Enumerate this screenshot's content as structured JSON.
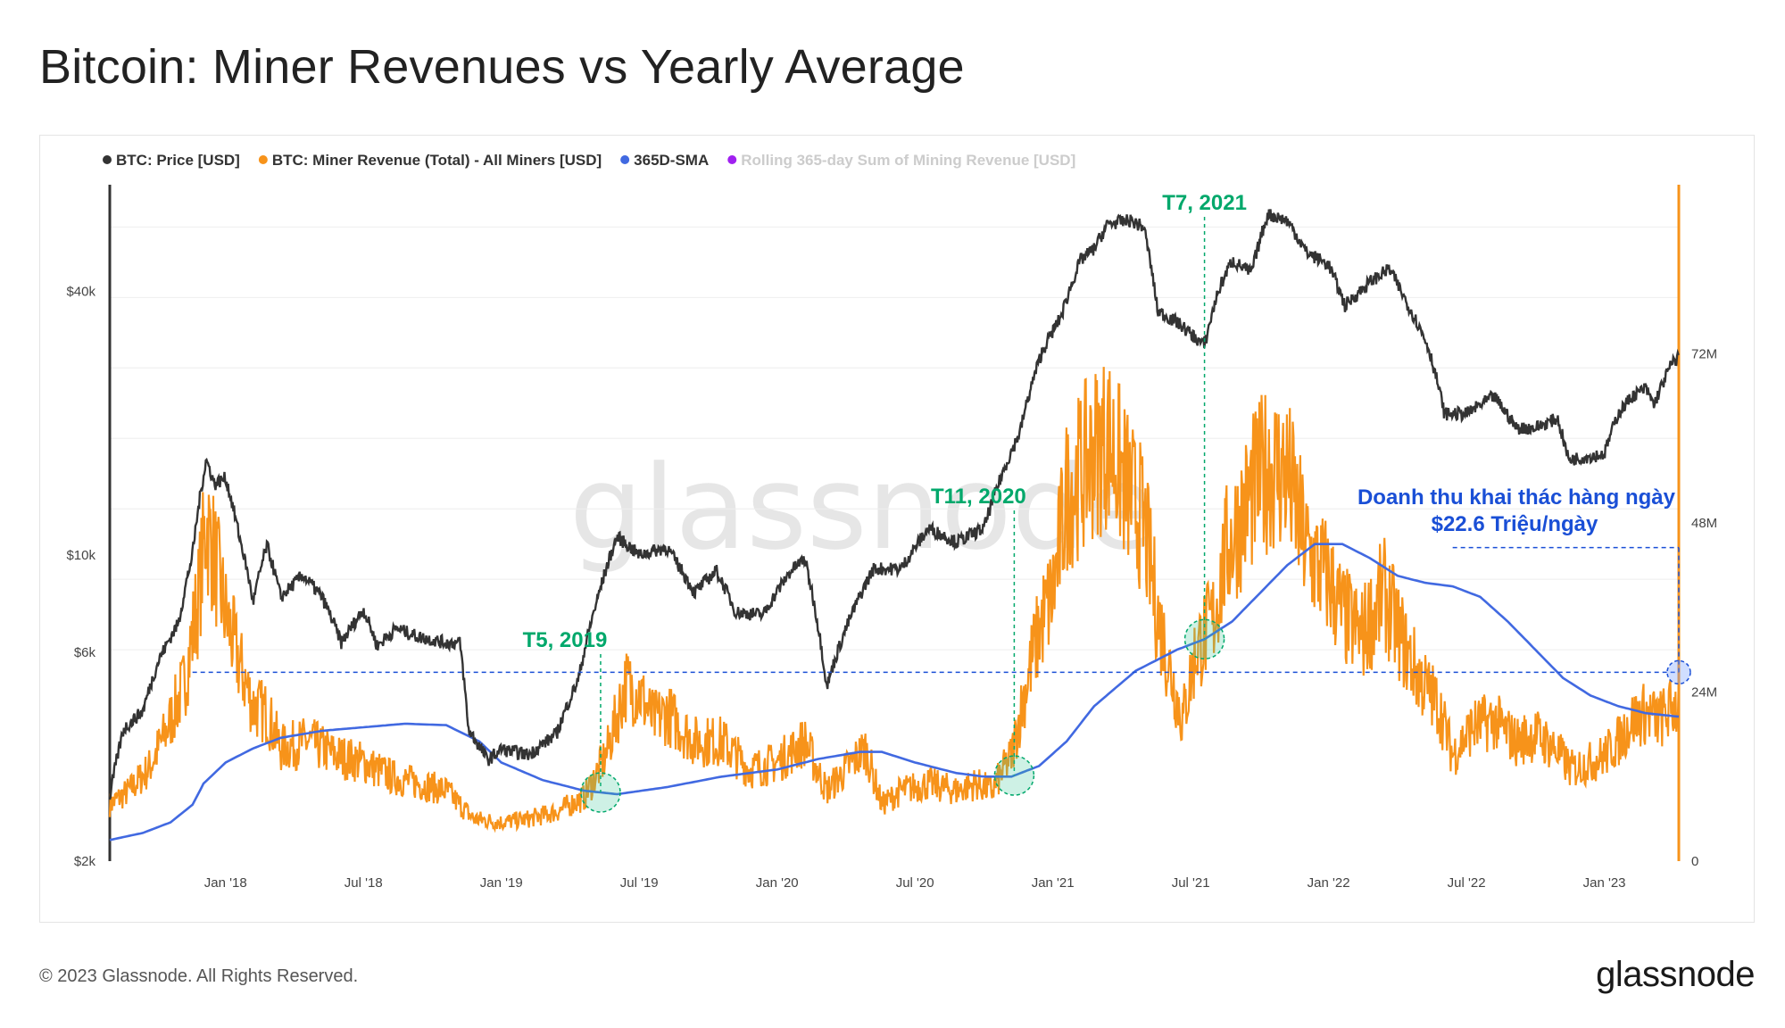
{
  "title": "Bitcoin: Miner Revenues vs Yearly Average",
  "footer": "© 2023 Glassnode. All Rights Reserved.",
  "brand": "glassnode",
  "watermark": "glassnode",
  "colors": {
    "price": "#333333",
    "revenue": "#f7931a",
    "sma": "#4169e1",
    "rolling": "#a020f0",
    "annotation_green": "#00a86b",
    "annotation_blue": "#1a4fd6"
  },
  "chart_data": {
    "type": "line",
    "legend": [
      {
        "label": "BTC: Price [USD]",
        "color": "#333333",
        "active": true
      },
      {
        "label": "BTC: Miner Revenue (Total) - All Miners [USD]",
        "color": "#f7931a",
        "active": true
      },
      {
        "label": "365D-SMA",
        "color": "#4169e1",
        "active": true
      },
      {
        "label": "Rolling 365-day Sum of Mining Revenue [USD]",
        "color": "#a020f0",
        "active": false
      }
    ],
    "x_ticks": [
      "Jan '18",
      "Jul '18",
      "Jan '19",
      "Jul '19",
      "Jan '20",
      "Jul '20",
      "Jan '21",
      "Jul '21",
      "Jan '22",
      "Jul '22",
      "Jan '23"
    ],
    "x_range": [
      2017.58,
      2023.27
    ],
    "y_left": {
      "scale": "log",
      "range": [
        2000,
        70000
      ],
      "ticks": [
        {
          "value": 2000,
          "label": "$2k"
        },
        {
          "value": 6000,
          "label": "$6k"
        },
        {
          "value": 10000,
          "label": "$10k"
        },
        {
          "value": 40000,
          "label": "$40k"
        }
      ]
    },
    "y_right": {
      "scale": "linear",
      "range": [
        0,
        96
      ],
      "unit": "M USD",
      "ticks": [
        {
          "value": 0,
          "label": "0"
        },
        {
          "value": 24,
          "label": "24M"
        },
        {
          "value": 48,
          "label": "48M"
        },
        {
          "value": 72,
          "label": "72M"
        }
      ]
    },
    "series": [
      {
        "name": "BTC: Price [USD]",
        "axis": "left",
        "points": [
          [
            2017.58,
            2800
          ],
          [
            2017.63,
            4000
          ],
          [
            2017.7,
            4400
          ],
          [
            2017.76,
            5800
          ],
          [
            2017.83,
            7000
          ],
          [
            2017.88,
            10000
          ],
          [
            2017.93,
            16500
          ],
          [
            2017.96,
            14500
          ],
          [
            2018.0,
            15000
          ],
          [
            2018.05,
            11000
          ],
          [
            2018.1,
            7800
          ],
          [
            2018.15,
            10500
          ],
          [
            2018.2,
            8000
          ],
          [
            2018.28,
            9000
          ],
          [
            2018.35,
            8000
          ],
          [
            2018.42,
            6300
          ],
          [
            2018.5,
            7500
          ],
          [
            2018.55,
            6200
          ],
          [
            2018.62,
            6800
          ],
          [
            2018.7,
            6500
          ],
          [
            2018.8,
            6300
          ],
          [
            2018.85,
            6300
          ],
          [
            2018.88,
            4000
          ],
          [
            2018.95,
            3400
          ],
          [
            2019.0,
            3600
          ],
          [
            2019.1,
            3500
          ],
          [
            2019.2,
            3900
          ],
          [
            2019.28,
            5200
          ],
          [
            2019.35,
            8000
          ],
          [
            2019.42,
            11000
          ],
          [
            2019.5,
            10000
          ],
          [
            2019.6,
            10400
          ],
          [
            2019.7,
            8200
          ],
          [
            2019.78,
            9200
          ],
          [
            2019.85,
            7400
          ],
          [
            2019.95,
            7300
          ],
          [
            2020.05,
            9200
          ],
          [
            2020.1,
            9800
          ],
          [
            2020.18,
            5000
          ],
          [
            2020.25,
            6800
          ],
          [
            2020.35,
            9300
          ],
          [
            2020.45,
            9300
          ],
          [
            2020.55,
            11500
          ],
          [
            2020.65,
            10700
          ],
          [
            2020.75,
            11500
          ],
          [
            2020.82,
            15500
          ],
          [
            2020.88,
            19000
          ],
          [
            2020.96,
            29000
          ],
          [
            2021.03,
            35000
          ],
          [
            2021.1,
            47000
          ],
          [
            2021.15,
            50000
          ],
          [
            2021.2,
            57000
          ],
          [
            2021.28,
            58000
          ],
          [
            2021.33,
            56000
          ],
          [
            2021.38,
            36000
          ],
          [
            2021.45,
            34000
          ],
          [
            2021.5,
            32000
          ],
          [
            2021.55,
            30000
          ],
          [
            2021.6,
            40000
          ],
          [
            2021.65,
            47000
          ],
          [
            2021.72,
            44000
          ],
          [
            2021.78,
            60000
          ],
          [
            2021.85,
            58000
          ],
          [
            2021.92,
            49000
          ],
          [
            2022.0,
            46000
          ],
          [
            2022.06,
            37000
          ],
          [
            2022.15,
            42000
          ],
          [
            2022.22,
            45000
          ],
          [
            2022.28,
            38000
          ],
          [
            2022.36,
            30000
          ],
          [
            2022.42,
            21000
          ],
          [
            2022.5,
            21000
          ],
          [
            2022.6,
            23000
          ],
          [
            2022.68,
            19500
          ],
          [
            2022.75,
            19500
          ],
          [
            2022.83,
            20500
          ],
          [
            2022.87,
            16500
          ],
          [
            2022.95,
            16800
          ],
          [
            2023.0,
            17000
          ],
          [
            2023.05,
            21000
          ],
          [
            2023.1,
            23000
          ],
          [
            2023.15,
            24000
          ],
          [
            2023.18,
            22000
          ],
          [
            2023.24,
            27000
          ],
          [
            2023.27,
            28500
          ]
        ]
      },
      {
        "name": "BTC: Miner Revenue (Total) - All Miners [USD]",
        "axis": "right",
        "points": [
          [
            2017.58,
            8
          ],
          [
            2017.65,
            10
          ],
          [
            2017.72,
            13
          ],
          [
            2017.78,
            18
          ],
          [
            2017.85,
            25
          ],
          [
            2017.9,
            37
          ],
          [
            2017.93,
            48
          ],
          [
            2017.96,
            43
          ],
          [
            2018.0,
            35
          ],
          [
            2018.05,
            28
          ],
          [
            2018.1,
            22
          ],
          [
            2018.15,
            21
          ],
          [
            2018.2,
            16
          ],
          [
            2018.3,
            17
          ],
          [
            2018.4,
            15
          ],
          [
            2018.5,
            14
          ],
          [
            2018.6,
            12
          ],
          [
            2018.7,
            11
          ],
          [
            2018.8,
            10
          ],
          [
            2018.9,
            6
          ],
          [
            2019.0,
            5.5
          ],
          [
            2019.1,
            6
          ],
          [
            2019.2,
            7
          ],
          [
            2019.3,
            9
          ],
          [
            2019.38,
            15
          ],
          [
            2019.45,
            25
          ],
          [
            2019.5,
            24
          ],
          [
            2019.55,
            20
          ],
          [
            2019.6,
            21
          ],
          [
            2019.7,
            17
          ],
          [
            2019.8,
            17
          ],
          [
            2019.9,
            13
          ],
          [
            2020.0,
            14
          ],
          [
            2020.1,
            17
          ],
          [
            2020.18,
            10
          ],
          [
            2020.25,
            13
          ],
          [
            2020.32,
            16
          ],
          [
            2020.38,
            8
          ],
          [
            2020.45,
            10
          ],
          [
            2020.55,
            11
          ],
          [
            2020.65,
            10
          ],
          [
            2020.72,
            11
          ],
          [
            2020.78,
            10
          ],
          [
            2020.85,
            15
          ],
          [
            2020.92,
            28
          ],
          [
            2020.96,
            34
          ],
          [
            2021.0,
            38
          ],
          [
            2021.05,
            52
          ],
          [
            2021.1,
            55
          ],
          [
            2021.15,
            58
          ],
          [
            2021.2,
            60
          ],
          [
            2021.28,
            52
          ],
          [
            2021.33,
            48
          ],
          [
            2021.38,
            35
          ],
          [
            2021.42,
            28
          ],
          [
            2021.47,
            20
          ],
          [
            2021.52,
            30
          ],
          [
            2021.58,
            34
          ],
          [
            2021.63,
            44
          ],
          [
            2021.72,
            52
          ],
          [
            2021.78,
            56
          ],
          [
            2021.85,
            55
          ],
          [
            2021.92,
            44
          ],
          [
            2022.0,
            40
          ],
          [
            2022.05,
            35
          ],
          [
            2022.12,
            32
          ],
          [
            2022.2,
            38
          ],
          [
            2022.28,
            30
          ],
          [
            2022.33,
            26
          ],
          [
            2022.4,
            22
          ],
          [
            2022.45,
            15
          ],
          [
            2022.52,
            19
          ],
          [
            2022.6,
            20
          ],
          [
            2022.68,
            17
          ],
          [
            2022.75,
            18
          ],
          [
            2022.82,
            16
          ],
          [
            2022.88,
            13
          ],
          [
            2022.95,
            14
          ],
          [
            2023.0,
            15
          ],
          [
            2023.05,
            17
          ],
          [
            2023.1,
            20
          ],
          [
            2023.15,
            21
          ],
          [
            2023.2,
            20
          ],
          [
            2023.27,
            22.6
          ]
        ]
      },
      {
        "name": "365D-SMA",
        "axis": "right",
        "points": [
          [
            2017.58,
            3
          ],
          [
            2017.7,
            4
          ],
          [
            2017.8,
            5.5
          ],
          [
            2017.88,
            8
          ],
          [
            2017.92,
            11
          ],
          [
            2018.0,
            14
          ],
          [
            2018.1,
            16
          ],
          [
            2018.2,
            17.5
          ],
          [
            2018.35,
            18.5
          ],
          [
            2018.5,
            19
          ],
          [
            2018.65,
            19.5
          ],
          [
            2018.8,
            19.3
          ],
          [
            2018.92,
            17
          ],
          [
            2019.0,
            14
          ],
          [
            2019.15,
            11.5
          ],
          [
            2019.3,
            10
          ],
          [
            2019.42,
            9.5
          ],
          [
            2019.6,
            10.5
          ],
          [
            2019.8,
            12
          ],
          [
            2020.0,
            13
          ],
          [
            2020.15,
            14.5
          ],
          [
            2020.3,
            15.5
          ],
          [
            2020.38,
            15.5
          ],
          [
            2020.5,
            14
          ],
          [
            2020.65,
            12.5
          ],
          [
            2020.75,
            12
          ],
          [
            2020.85,
            12
          ],
          [
            2020.95,
            13.5
          ],
          [
            2021.05,
            17
          ],
          [
            2021.15,
            22
          ],
          [
            2021.3,
            27
          ],
          [
            2021.45,
            30
          ],
          [
            2021.55,
            31.5
          ],
          [
            2021.65,
            34
          ],
          [
            2021.75,
            38
          ],
          [
            2021.85,
            42
          ],
          [
            2021.95,
            45
          ],
          [
            2022.05,
            45
          ],
          [
            2022.15,
            43
          ],
          [
            2022.25,
            40.5
          ],
          [
            2022.35,
            39.5
          ],
          [
            2022.45,
            39
          ],
          [
            2022.55,
            37.5
          ],
          [
            2022.65,
            34
          ],
          [
            2022.75,
            30
          ],
          [
            2022.85,
            26
          ],
          [
            2022.95,
            23.5
          ],
          [
            2023.05,
            22
          ],
          [
            2023.15,
            21
          ],
          [
            2023.27,
            20.5
          ]
        ]
      }
    ],
    "guides": [
      {
        "x": 2019.36,
        "label": "T5, 2019"
      },
      {
        "x": 2020.86,
        "label": "T11, 2020"
      },
      {
        "x": 2021.55,
        "label": "T7, 2021"
      }
    ],
    "annotation": {
      "line1": "Doanh thu khai thác hàng ngày",
      "line2": "$22.6 Triệu/ngày",
      "value": 22.6
    }
  }
}
